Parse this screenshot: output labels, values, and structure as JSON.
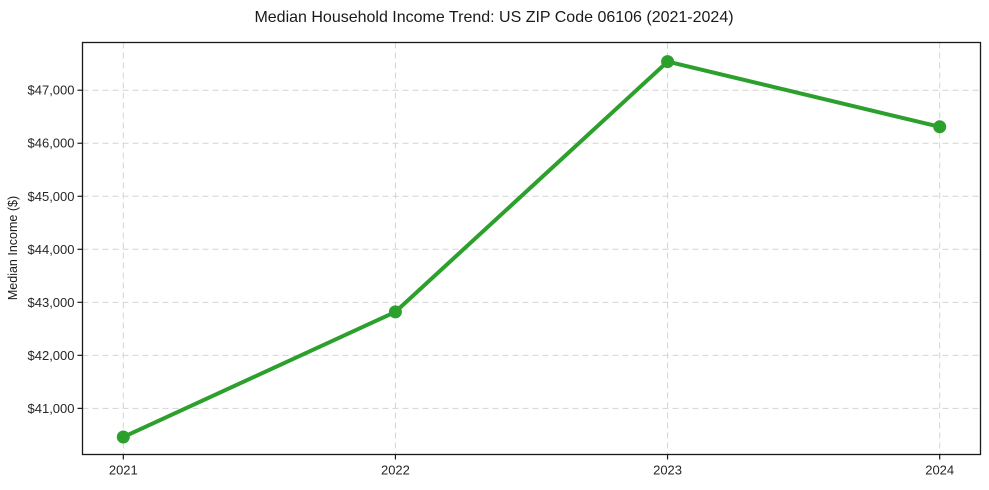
{
  "chart_data": {
    "type": "line",
    "title": "Median Household Income Trend: US ZIP Code 06106 (2021-2024)",
    "xlabel": "",
    "ylabel": "Median Income ($)",
    "x": [
      2021,
      2022,
      2023,
      2024
    ],
    "values": [
      40460,
      42820,
      47540,
      46310
    ],
    "xtick_labels": [
      "2021",
      "2022",
      "2023",
      "2024"
    ],
    "ytick_values": [
      41000,
      42000,
      43000,
      44000,
      45000,
      46000,
      47000
    ],
    "ytick_labels": [
      "$41,000",
      "$42,000",
      "$43,000",
      "$44,000",
      "$45,000",
      "$46,000",
      "$47,000"
    ],
    "xlim": [
      2020.85,
      2024.15
    ],
    "ylim": [
      40130,
      47900
    ],
    "grid": true,
    "grid_style": "dashed",
    "legend_position": "none",
    "colors": {
      "line": "#2ca02c",
      "marker": "#2ca02c",
      "grid": "#d4d4d4",
      "axis_text": "#262626",
      "spine": "#1a1a1a",
      "background": "#ffffff"
    }
  }
}
